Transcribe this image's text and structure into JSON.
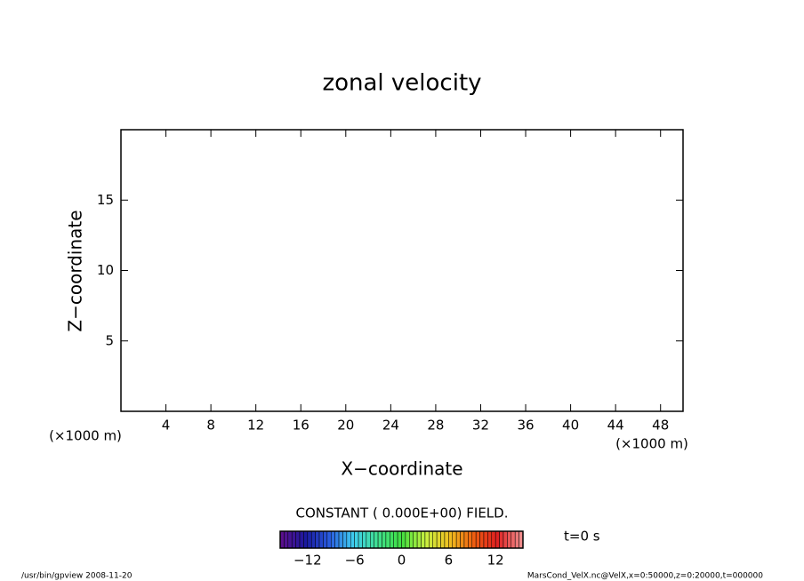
{
  "chart_data": {
    "type": "contour",
    "title": "zonal velocity",
    "x_label": "X−coordinate",
    "y_label": "Z−coordinate",
    "x_unit": "(×1000 m)",
    "y_unit": "(×1000 m)",
    "xlim": [
      0,
      50
    ],
    "xticks": [
      4,
      8,
      12,
      16,
      20,
      24,
      28,
      32,
      36,
      40,
      44,
      48
    ],
    "ylim": [
      0,
      20
    ],
    "yticks": [
      5,
      10,
      15
    ],
    "field_note": "CONSTANT ( 0.000E+00) FIELD.",
    "time_label": "t=0 s",
    "colorbar": {
      "lim": [
        -15.5,
        15.5
      ],
      "ticks": [
        {
          "value": -12,
          "label": "−12"
        },
        {
          "value": -6,
          "label": "−6"
        },
        0,
        6,
        12
      ],
      "colors": [
        "#5a0f8c",
        "#1a1aa0",
        "#2a5de0",
        "#3fd0f0",
        "#40e090",
        "#40e040",
        "#c8f040",
        "#f0c020",
        "#f06010",
        "#e02020",
        "#f08c8c"
      ]
    },
    "footer_left": "/usr/bin/gpview   2008-11-20",
    "footer_right": "MarsCond_VelX.nc@VelX,x=0:50000,z=0:20000,t=000000"
  }
}
